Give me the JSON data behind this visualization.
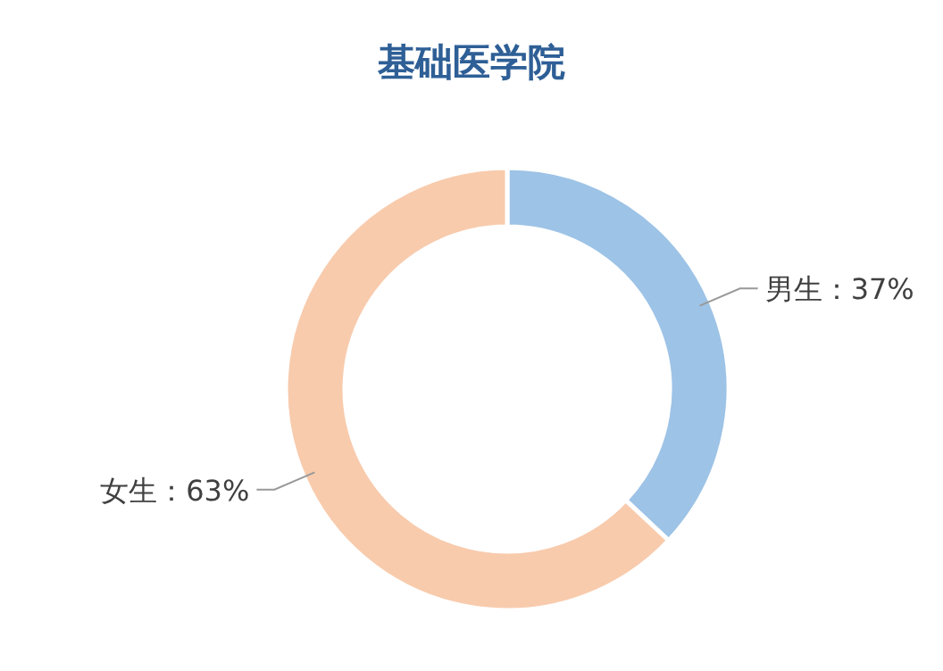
{
  "chart_data": {
    "type": "donut",
    "title": "基础医学院",
    "categories": [
      "男生",
      "女生"
    ],
    "values": [
      37,
      63
    ],
    "value_labels": [
      "37%",
      "63%"
    ],
    "colors": [
      "#9dc3e6",
      "#f8cbad"
    ],
    "legend": false
  }
}
